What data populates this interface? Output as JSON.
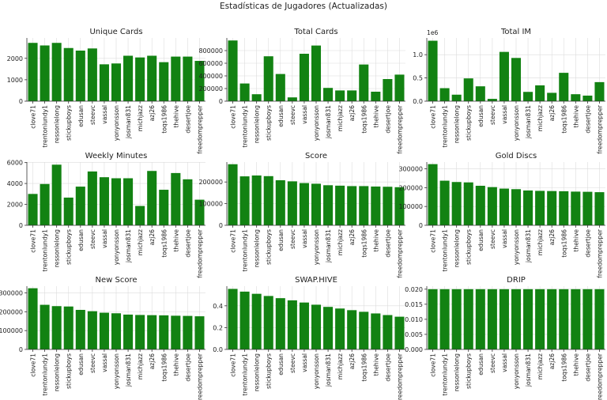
{
  "figure": {
    "title": "Estadísticas de Jugadores (Actualizadas)"
  },
  "colors": {
    "bar": "#128212",
    "bar_edge": "#0b5e0b",
    "grid": "#dcdcdc",
    "axis": "#333333"
  },
  "chart_data": [
    {
      "type": "bar",
      "title": "Unique Cards",
      "categories": [
        "clove71",
        "trentonlundy1",
        "ressonlelong",
        "stickupboys",
        "edusan",
        "steevc",
        "vassal",
        "yonyonsson",
        "josman831",
        "michjazz",
        "azj26",
        "toqs1986",
        "thehive",
        "desertjoe",
        "freedomprepper"
      ],
      "values": [
        2720,
        2600,
        2720,
        2480,
        2360,
        2460,
        1720,
        1760,
        2120,
        2040,
        2120,
        1820,
        2080,
        2080,
        1880
      ],
      "ylim": [
        0,
        2950
      ],
      "yticks": [
        0,
        1000,
        2000
      ],
      "ytick_labels": [
        "0",
        "1000",
        "2000"
      ],
      "grid": true
    },
    {
      "type": "bar",
      "title": "Total Cards",
      "categories": [
        "clove71",
        "trentonlundy1",
        "ressonlelong",
        "stickupboys",
        "edusan",
        "steevc",
        "vassal",
        "yonyonsson",
        "josman831",
        "michjazz",
        "azj26",
        "toqs1986",
        "thehive",
        "desertjoe",
        "freedomprepper"
      ],
      "values": [
        960000,
        280000,
        110000,
        710000,
        430000,
        60000,
        750000,
        880000,
        210000,
        170000,
        170000,
        580000,
        150000,
        350000,
        420000
      ],
      "ylim": [
        0,
        1000000
      ],
      "yticks": [
        0,
        200000,
        400000,
        600000,
        800000
      ],
      "ytick_labels": [
        "0",
        "200000",
        "400000",
        "600000",
        "800000"
      ],
      "grid": true
    },
    {
      "type": "bar",
      "title": "Total IM",
      "offset_label": "1e6",
      "categories": [
        "clove71",
        "trentonlundy1",
        "ressonlelong",
        "stickupboys",
        "edusan",
        "steevc",
        "vassal",
        "yonyonsson",
        "josman831",
        "michjazz",
        "azj26",
        "toqs1986",
        "thehive",
        "desertjoe",
        "freedomprepper"
      ],
      "values": [
        1300000,
        280000,
        140000,
        490000,
        320000,
        50000,
        1060000,
        930000,
        200000,
        340000,
        180000,
        610000,
        150000,
        120000,
        410000
      ],
      "ylim": [
        0,
        1360000
      ],
      "yticks": [
        0,
        500000,
        1000000
      ],
      "ytick_labels": [
        "0.0",
        "0.5",
        "1.0"
      ],
      "grid": true
    },
    {
      "type": "bar",
      "title": "Weekly Minutes",
      "categories": [
        "clove71",
        "trentonlundy1",
        "ressonlelong",
        "stickupboys",
        "edusan",
        "steevc",
        "vassal",
        "yonyonsson",
        "josman831",
        "michjazz",
        "azj26",
        "toqs1986",
        "thehive",
        "desertjoe",
        "freedomprepper"
      ],
      "values": [
        3000,
        3950,
        5800,
        2650,
        3700,
        5150,
        4600,
        4500,
        4500,
        1850,
        5200,
        3400,
        5000,
        4400,
        2450
      ],
      "ylim": [
        0,
        6050
      ],
      "yticks": [
        0,
        2000,
        4000,
        6000
      ],
      "ytick_labels": [
        "0",
        "2000",
        "4000",
        "6000"
      ],
      "grid": true
    },
    {
      "type": "bar",
      "title": "Score",
      "categories": [
        "clove71",
        "trentonlundy1",
        "ressonlelong",
        "stickupboys",
        "edusan",
        "steevc",
        "vassal",
        "yonyonsson",
        "josman831",
        "michjazz",
        "azj26",
        "toqs1986",
        "thehive",
        "desertjoe",
        "freedomprepper"
      ],
      "values": [
        282000,
        226000,
        230000,
        227000,
        208000,
        203000,
        195000,
        192000,
        185000,
        183000,
        181000,
        181000,
        179000,
        178000,
        176000
      ],
      "ylim": [
        0,
        292000
      ],
      "yticks": [
        0,
        100000,
        200000
      ],
      "ytick_labels": [
        "0",
        "100000",
        "200000"
      ],
      "grid": true
    },
    {
      "type": "bar",
      "title": "Gold Discs",
      "categories": [
        "clove71",
        "trentonlundy1",
        "ressonlelong",
        "stickupboys",
        "edusan",
        "steevc",
        "vassal",
        "yonyonsson",
        "josman831",
        "michjazz",
        "azj26",
        "toqs1986",
        "thehive",
        "desertjoe",
        "freedomprepper"
      ],
      "values": [
        325000,
        237000,
        230000,
        228000,
        210000,
        203000,
        195000,
        192000,
        185000,
        183000,
        182000,
        181000,
        179000,
        178000,
        176000
      ],
      "ylim": [
        0,
        336000
      ],
      "yticks": [
        0,
        100000,
        200000,
        300000
      ],
      "ytick_labels": [
        "0",
        "100000",
        "200000",
        "300000"
      ],
      "grid": true
    },
    {
      "type": "bar",
      "title": "New Score",
      "categories": [
        "clove71",
        "trentonlundy1",
        "ressonlelong",
        "stickupboys",
        "edusan",
        "steevc",
        "vassal",
        "yonyonsson",
        "josman831",
        "michjazz",
        "azj26",
        "toqs1986",
        "thehive",
        "desertjoe",
        "freedomprepper"
      ],
      "values": [
        325000,
        237000,
        230000,
        228000,
        210000,
        203000,
        195000,
        192000,
        185000,
        183000,
        182000,
        181000,
        179000,
        178000,
        176000
      ],
      "ylim": [
        0,
        336000
      ],
      "yticks": [
        0,
        100000,
        200000,
        300000
      ],
      "ytick_labels": [
        "0",
        "100000",
        "200000",
        "300000"
      ],
      "grid": true
    },
    {
      "type": "bar",
      "title": "SWAP.HIVE",
      "categories": [
        "clove71",
        "trentonlundy1",
        "ressonlelong",
        "stickupboys",
        "edusan",
        "steevc",
        "vassal",
        "yonyonsson",
        "josman831",
        "michjazz",
        "azj26",
        "toqs1986",
        "thehive",
        "desertjoe",
        "freedomprepper"
      ],
      "values": [
        0.555,
        0.53,
        0.51,
        0.49,
        0.47,
        0.45,
        0.43,
        0.41,
        0.39,
        0.375,
        0.36,
        0.345,
        0.33,
        0.315,
        0.3
      ],
      "ylim": [
        0,
        0.58
      ],
      "yticks": [
        0,
        0.2,
        0.4
      ],
      "ytick_labels": [
        "0.0",
        "0.2",
        "0.4"
      ],
      "grid": true
    },
    {
      "type": "bar",
      "title": "DRIP",
      "categories": [
        "clove71",
        "trentonlundy1",
        "ressonlelong",
        "stickupboys",
        "edusan",
        "steevc",
        "vassal",
        "yonyonsson",
        "josman831",
        "michjazz",
        "azj26",
        "toqs1986",
        "thehive",
        "desertjoe",
        "freedomprepper"
      ],
      "values": [
        0.02,
        0.02,
        0.02,
        0.02,
        0.02,
        0.02,
        0.02,
        0.02,
        0.02,
        0.02,
        0.02,
        0.02,
        0.02,
        0.02,
        0.02
      ],
      "ylim": [
        0,
        0.021
      ],
      "yticks": [
        0,
        0.005,
        0.01,
        0.015,
        0.02
      ],
      "ytick_labels": [
        "0.000",
        "0.005",
        "0.010",
        "0.015",
        "0.020"
      ],
      "grid": true
    }
  ]
}
